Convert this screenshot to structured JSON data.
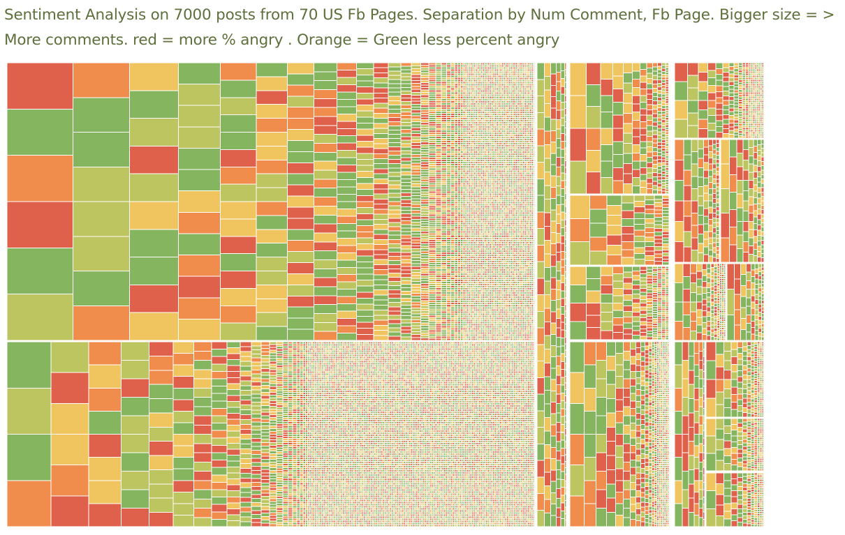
{
  "title_line": "Sentiment Analysis on 7000 posts from 70 US Fb Pages. Separation by Num Comment, Fb Page. Bigger size = > More comments. red = more % angry . Orange = Green less percent angry",
  "chart_data": {
    "type": "treemap",
    "title": "Sentiment Analysis on 7000 posts from 70 US Fb Pages. Separation by Num Comment, Fb Page. Bigger size = > More comments. red = more % angry . Orange = Green less percent angry",
    "size_measure": "Num Comment",
    "color_measure": "% angry",
    "grouping": "Fb Page",
    "num_posts": 7000,
    "num_pages": 70,
    "legend": [],
    "colors": {
      "high_angry": "#e0614b",
      "mid_high": "#f08c4c",
      "mid": "#f0c55f",
      "mid_low": "#bcc55f",
      "low_angry": "#86b560"
    }
  }
}
